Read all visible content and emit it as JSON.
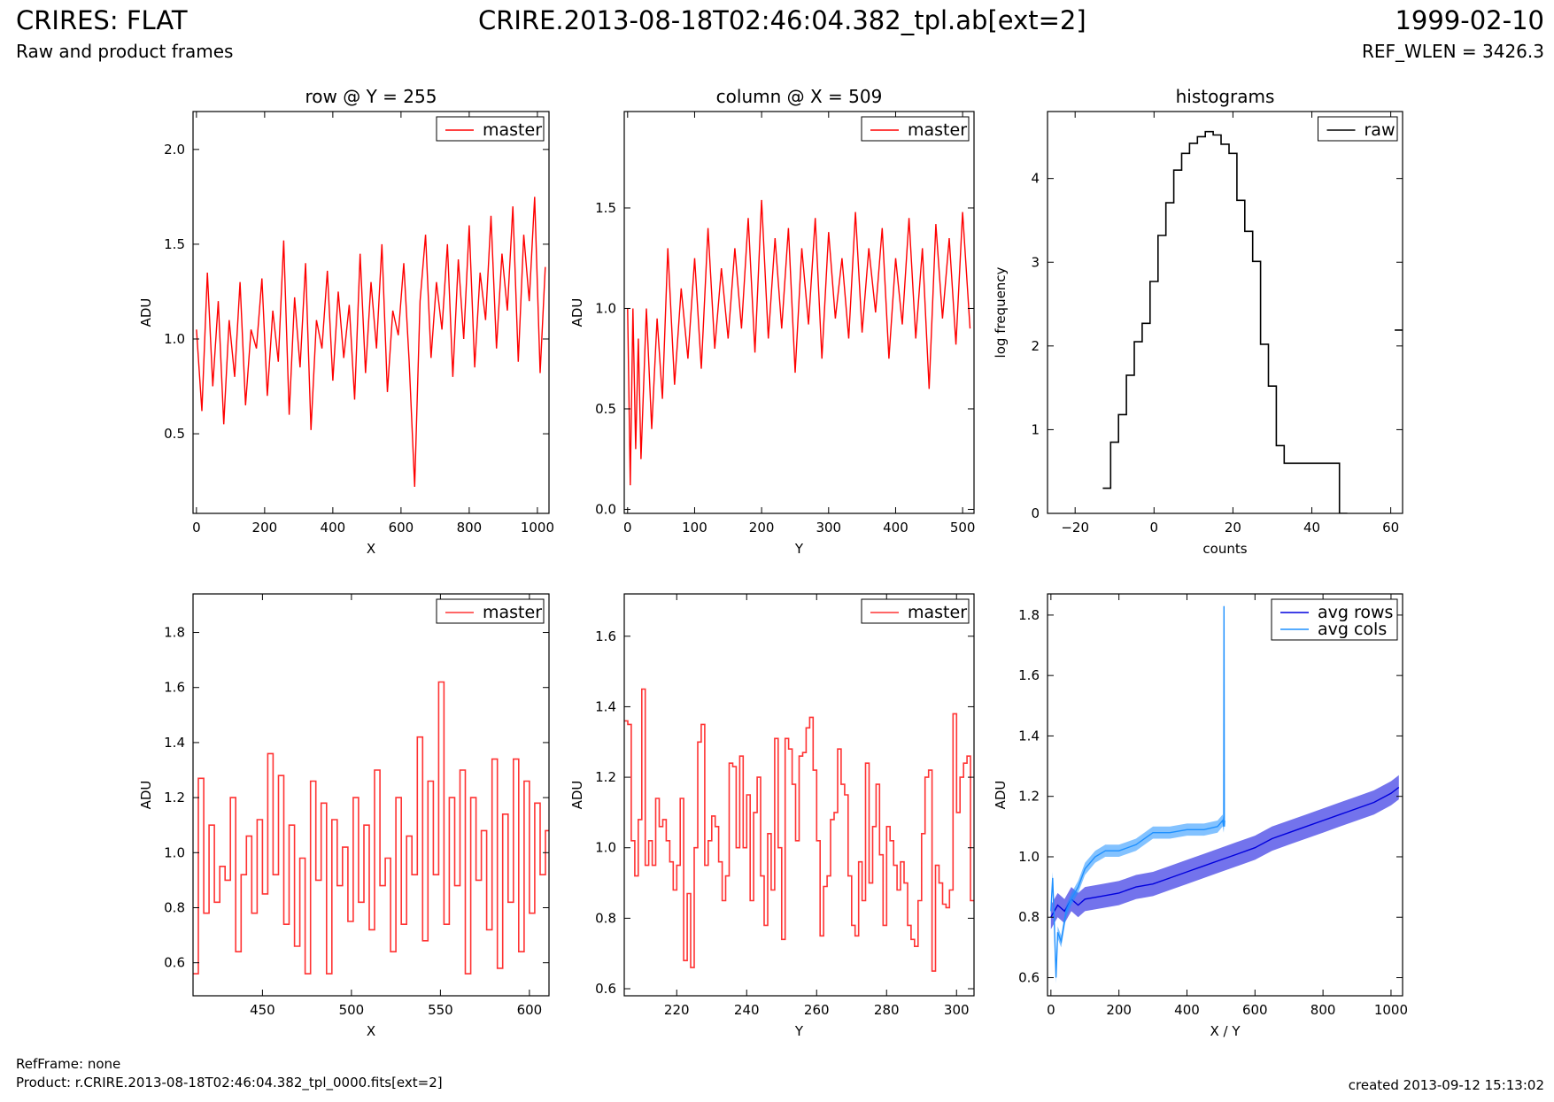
{
  "header": {
    "title_left": "CRIRES: FLAT",
    "subtitle_left": "Raw and product frames",
    "title_center": "CRIRE.2013-08-18T02:46:04.382_tpl.ab[ext=2]",
    "title_right": "1999-02-10",
    "subtitle_right": "REF_WLEN = 3426.3"
  },
  "footer": {
    "ref_frame": "RefFrame: none",
    "product": "Product: r.CRIRE.2013-08-18T02:46:04.382_tpl_0000.fits[ext=2]",
    "created": "created 2013-09-12 15:13:02"
  },
  "colors": {
    "master": "#ff0000",
    "master_zoom": "#ff3333",
    "raw": "#000000",
    "avg_rows": "#0000dd",
    "avg_cols": "#1e90ff"
  },
  "chart_data": [
    {
      "id": "row-plot",
      "type": "line",
      "title": "row @ Y = 255",
      "xlabel": "X",
      "ylabel": "ADU",
      "xlim": [
        -10,
        1034
      ],
      "ylim": [
        0.08,
        2.2
      ],
      "xticks": [
        0,
        200,
        400,
        600,
        800,
        1000
      ],
      "xtick_labels": [
        "0",
        "200",
        "400",
        "600",
        "800",
        "1000"
      ],
      "yticks": [
        0.5,
        1.0,
        1.5,
        2.0
      ],
      "ytick_labels": [
        "0.5",
        "1.0",
        "1.5",
        "2.0"
      ],
      "legend": "top-right",
      "series": [
        {
          "name": "master",
          "color": "#ff0000",
          "x": [
            0,
            16,
            32,
            48,
            64,
            80,
            96,
            112,
            128,
            144,
            160,
            176,
            192,
            208,
            224,
            240,
            256,
            272,
            288,
            304,
            320,
            336,
            352,
            368,
            384,
            400,
            416,
            432,
            448,
            464,
            480,
            496,
            512,
            528,
            544,
            560,
            576,
            592,
            608,
            624,
            640,
            656,
            672,
            688,
            704,
            720,
            736,
            752,
            768,
            784,
            800,
            816,
            832,
            848,
            864,
            880,
            896,
            912,
            928,
            944,
            960,
            976,
            992,
            1008,
            1023
          ],
          "y": [
            1.05,
            0.62,
            1.35,
            0.75,
            1.2,
            0.55,
            1.1,
            0.8,
            1.3,
            0.65,
            1.05,
            0.95,
            1.32,
            0.7,
            1.15,
            0.88,
            1.52,
            0.6,
            1.22,
            0.85,
            1.4,
            0.52,
            1.1,
            0.95,
            1.36,
            0.78,
            1.25,
            0.9,
            1.18,
            0.68,
            1.45,
            0.82,
            1.3,
            0.95,
            1.5,
            0.72,
            1.15,
            1.02,
            1.4,
            0.88,
            0.22,
            1.2,
            1.55,
            0.9,
            1.3,
            1.05,
            1.5,
            0.8,
            1.42,
            1.0,
            1.6,
            0.85,
            1.35,
            1.1,
            1.65,
            0.95,
            1.45,
            1.15,
            1.7,
            0.88,
            1.55,
            1.2,
            1.75,
            0.82,
            1.38
          ]
        }
      ]
    },
    {
      "id": "column-plot",
      "type": "line",
      "title": "column @ X = 509",
      "xlabel": "Y",
      "ylabel": "ADU",
      "xlim": [
        -5,
        517
      ],
      "ylim": [
        -0.02,
        1.98
      ],
      "xticks": [
        0,
        100,
        200,
        300,
        400,
        500
      ],
      "xtick_labels": [
        "0",
        "100",
        "200",
        "300",
        "400",
        "500"
      ],
      "yticks": [
        0.0,
        0.5,
        1.0,
        1.5
      ],
      "ytick_labels": [
        "0.0",
        "0.5",
        "1.0",
        "1.5"
      ],
      "legend": "top-right",
      "series": [
        {
          "name": "master",
          "color": "#ff0000",
          "x": [
            0,
            4,
            8,
            12,
            16,
            20,
            28,
            36,
            44,
            52,
            60,
            70,
            80,
            90,
            100,
            110,
            120,
            130,
            140,
            150,
            160,
            170,
            180,
            190,
            200,
            210,
            220,
            230,
            240,
            250,
            260,
            270,
            280,
            290,
            300,
            310,
            320,
            330,
            340,
            350,
            360,
            370,
            380,
            390,
            400,
            410,
            420,
            430,
            440,
            450,
            460,
            470,
            480,
            490,
            500,
            511
          ],
          "y": [
            1.0,
            0.12,
            1.0,
            0.3,
            0.85,
            0.25,
            1.0,
            0.4,
            0.95,
            0.55,
            1.3,
            0.62,
            1.1,
            0.75,
            1.25,
            0.7,
            1.4,
            0.8,
            1.2,
            0.85,
            1.3,
            0.9,
            1.45,
            0.78,
            1.54,
            0.85,
            1.35,
            0.9,
            1.4,
            0.68,
            1.3,
            0.92,
            1.45,
            0.75,
            1.38,
            0.95,
            1.25,
            0.85,
            1.48,
            0.88,
            1.3,
            0.98,
            1.4,
            0.75,
            1.25,
            0.92,
            1.45,
            0.85,
            1.3,
            0.6,
            1.42,
            0.95,
            1.35,
            0.82,
            1.48,
            0.9
          ]
        }
      ]
    },
    {
      "id": "histogram-plot",
      "type": "line",
      "title": "histograms",
      "xlabel": "counts",
      "ylabel": "log frequency",
      "xlim": [
        -27,
        63
      ],
      "ylim": [
        0,
        4.8
      ],
      "xticks": [
        -20,
        0,
        20,
        40,
        60
      ],
      "xtick_labels": [
        "−20",
        "0",
        "20",
        "40",
        "60"
      ],
      "yticks": [
        0,
        1,
        2,
        3,
        4
      ],
      "ytick_labels": [
        "0",
        "1",
        "2",
        "3",
        "4"
      ],
      "legend": "top-right",
      "series": [
        {
          "name": "raw",
          "color": "#000000",
          "step": true,
          "x": [
            -13,
            -11,
            -9,
            -7,
            -5,
            -3,
            -1,
            1,
            3,
            5,
            7,
            9,
            11,
            13,
            15,
            17,
            19,
            21,
            23,
            25,
            27,
            29,
            31,
            33,
            35,
            37,
            39,
            41,
            43,
            45,
            47
          ],
          "y": [
            0.3,
            0.85,
            1.18,
            1.65,
            2.05,
            2.27,
            2.77,
            3.32,
            3.71,
            4.1,
            4.3,
            4.42,
            4.5,
            4.56,
            4.52,
            4.41,
            4.3,
            3.74,
            3.37,
            3.01,
            2.02,
            1.52,
            0.81,
            0.6,
            0.6,
            0.6,
            0.6,
            0.6,
            0.6,
            0.6,
            0.0
          ]
        },
        {
          "name": "",
          "color": "#000000",
          "step": true,
          "x": [
            61,
            63
          ],
          "y": [
            2.19,
            2.19
          ]
        }
      ]
    },
    {
      "id": "row-zoom-plot",
      "type": "line",
      "title": "",
      "xlabel": "X",
      "ylabel": "ADU",
      "xlim": [
        411,
        611
      ],
      "ylim": [
        0.48,
        1.94
      ],
      "xticks": [
        450,
        500,
        550,
        600
      ],
      "xtick_labels": [
        "450",
        "500",
        "550",
        "600"
      ],
      "yticks": [
        0.6,
        0.8,
        1.0,
        1.2,
        1.4,
        1.6,
        1.8
      ],
      "ytick_labels": [
        "0.6",
        "0.8",
        "1.0",
        "1.2",
        "1.4",
        "1.6",
        "1.8"
      ],
      "legend": "top-right",
      "series": [
        {
          "name": "master",
          "color": "#ff3333",
          "step": true,
          "x": [
            411,
            414,
            417,
            420,
            423,
            426,
            429,
            432,
            435,
            438,
            441,
            444,
            447,
            450,
            453,
            456,
            459,
            462,
            465,
            468,
            471,
            474,
            477,
            480,
            483,
            486,
            489,
            492,
            495,
            498,
            501,
            504,
            507,
            510,
            513,
            516,
            519,
            522,
            525,
            528,
            531,
            534,
            537,
            540,
            543,
            546,
            549,
            552,
            555,
            558,
            561,
            564,
            567,
            570,
            573,
            576,
            579,
            582,
            585,
            588,
            591,
            594,
            597,
            600,
            603,
            606,
            609
          ],
          "y": [
            0.56,
            1.27,
            0.78,
            1.1,
            0.82,
            0.95,
            0.9,
            1.2,
            0.64,
            0.92,
            1.06,
            0.78,
            1.12,
            0.85,
            1.36,
            0.92,
            1.28,
            0.74,
            1.1,
            0.66,
            0.98,
            0.56,
            1.26,
            0.9,
            1.18,
            0.56,
            1.12,
            0.88,
            1.02,
            0.75,
            1.2,
            0.82,
            1.1,
            0.72,
            1.3,
            0.88,
            0.98,
            0.64,
            1.2,
            0.74,
            1.06,
            0.92,
            1.42,
            0.68,
            1.26,
            0.92,
            1.62,
            0.74,
            1.2,
            0.88,
            1.3,
            0.56,
            1.2,
            0.9,
            1.08,
            0.72,
            1.34,
            0.58,
            1.14,
            0.82,
            1.34,
            0.64,
            1.26,
            0.78,
            1.18,
            0.92,
            1.08
          ]
        }
      ]
    },
    {
      "id": "column-zoom-plot",
      "type": "line",
      "title": "",
      "xlabel": "Y",
      "ylabel": "ADU",
      "xlim": [
        205,
        305
      ],
      "ylim": [
        0.58,
        1.72
      ],
      "xticks": [
        220,
        240,
        260,
        280,
        300
      ],
      "xtick_labels": [
        "220",
        "240",
        "260",
        "280",
        "300"
      ],
      "yticks": [
        0.6,
        0.8,
        1.0,
        1.2,
        1.4,
        1.6
      ],
      "ytick_labels": [
        "0.6",
        "0.8",
        "1.0",
        "1.2",
        "1.4",
        "1.6"
      ],
      "legend": "top-right",
      "series": [
        {
          "name": "master",
          "color": "#ff3333",
          "step": true,
          "x": [
            205,
            206,
            207,
            208,
            209,
            210,
            211,
            212,
            213,
            214,
            215,
            216,
            217,
            218,
            219,
            220,
            221,
            222,
            223,
            224,
            225,
            226,
            227,
            228,
            229,
            230,
            231,
            232,
            233,
            234,
            235,
            236,
            237,
            238,
            239,
            240,
            241,
            242,
            243,
            244,
            245,
            246,
            247,
            248,
            249,
            250,
            251,
            252,
            253,
            254,
            255,
            256,
            257,
            258,
            259,
            260,
            261,
            262,
            263,
            264,
            265,
            266,
            267,
            268,
            269,
            270,
            271,
            272,
            273,
            274,
            275,
            276,
            277,
            278,
            279,
            280,
            281,
            282,
            283,
            284,
            285,
            286,
            287,
            288,
            289,
            290,
            291,
            292,
            293,
            294,
            295,
            296,
            297,
            298,
            299,
            300,
            301,
            302,
            303,
            304
          ],
          "y": [
            1.36,
            1.35,
            1.02,
            0.92,
            1.08,
            1.45,
            0.95,
            1.02,
            0.95,
            1.14,
            1.06,
            1.08,
            1.02,
            0.96,
            0.88,
            0.95,
            1.14,
            0.68,
            0.87,
            0.66,
            1.0,
            1.3,
            1.35,
            0.95,
            1.02,
            1.09,
            1.06,
            0.96,
            0.85,
            0.92,
            1.24,
            1.23,
            1.0,
            1.26,
            1.0,
            1.15,
            0.85,
            1.1,
            1.2,
            0.92,
            0.78,
            1.04,
            0.88,
            1.31,
            1.0,
            0.74,
            1.31,
            1.28,
            1.18,
            1.02,
            1.26,
            1.27,
            1.34,
            1.37,
            1.22,
            1.02,
            0.75,
            0.89,
            0.92,
            1.08,
            1.1,
            1.28,
            1.18,
            1.15,
            0.92,
            0.78,
            0.75,
            0.96,
            0.85,
            1.24,
            0.9,
            1.06,
            1.18,
            0.98,
            0.78,
            1.06,
            1.02,
            0.95,
            0.88,
            0.96,
            0.9,
            0.78,
            0.74,
            0.72,
            0.85,
            1.04,
            1.2,
            1.22,
            0.65,
            0.95,
            0.9,
            0.84,
            0.83,
            0.88,
            1.38,
            1.1,
            1.2,
            1.24,
            1.26,
            0.85
          ]
        }
      ]
    },
    {
      "id": "average-plot",
      "type": "line",
      "title": "",
      "xlabel": "X / Y",
      "ylabel": "ADU",
      "xlim": [
        -10,
        1034
      ],
      "ylim": [
        0.54,
        1.87
      ],
      "xticks": [
        0,
        200,
        400,
        600,
        800,
        1000
      ],
      "xtick_labels": [
        "0",
        "200",
        "400",
        "600",
        "800",
        "1000"
      ],
      "yticks": [
        0.6,
        0.8,
        1.0,
        1.2,
        1.4,
        1.6,
        1.8
      ],
      "ytick_labels": [
        "0.6",
        "0.8",
        "1.0",
        "1.2",
        "1.4",
        "1.6",
        "1.8"
      ],
      "legend": "top-right",
      "series": [
        {
          "name": "avg rows",
          "color": "#0000dd",
          "x": [
            0,
            20,
            40,
            60,
            80,
            100,
            150,
            200,
            250,
            300,
            350,
            400,
            450,
            500,
            550,
            600,
            650,
            700,
            750,
            800,
            850,
            900,
            950,
            1000,
            1023
          ],
          "y": [
            0.8,
            0.84,
            0.82,
            0.86,
            0.84,
            0.86,
            0.87,
            0.88,
            0.9,
            0.91,
            0.93,
            0.95,
            0.97,
            0.99,
            1.01,
            1.03,
            1.06,
            1.08,
            1.1,
            1.12,
            1.14,
            1.16,
            1.18,
            1.21,
            1.23
          ],
          "band": 0.04
        },
        {
          "name": "avg cols",
          "color": "#1e90ff",
          "x": [
            0,
            5,
            10,
            15,
            20,
            30,
            45,
            60,
            80,
            100,
            130,
            160,
            200,
            250,
            300,
            350,
            400,
            450,
            490,
            505,
            508,
            509,
            510,
            511
          ],
          "y": [
            0.82,
            0.93,
            0.78,
            0.6,
            0.75,
            0.72,
            0.82,
            0.86,
            0.9,
            0.96,
            1.0,
            1.02,
            1.02,
            1.04,
            1.08,
            1.08,
            1.09,
            1.09,
            1.1,
            1.12,
            1.1,
            1.83,
            1.1,
            1.12
          ],
          "band": 0.02
        }
      ]
    }
  ]
}
